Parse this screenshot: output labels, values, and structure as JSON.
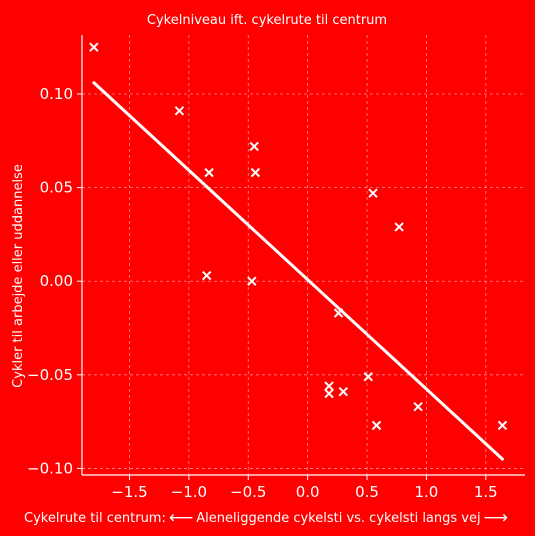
{
  "chart_data": {
    "type": "scatter",
    "title": "Cykelniveau ift. cykelrute til centrum",
    "ylabel": "Cykler til arbejde eller uddannelse",
    "xlabel": "",
    "xlim": [
      -1.9,
      1.83
    ],
    "ylim": [
      -0.1035,
      0.1315
    ],
    "xticks": [
      -1.5,
      -1.0,
      -0.5,
      0.0,
      0.5,
      1.0,
      1.5
    ],
    "xtick_labels": [
      "−1.5",
      "−1.0",
      "−0.5",
      "0.0",
      "0.5",
      "1.0",
      "1.5"
    ],
    "yticks": [
      -0.1,
      -0.05,
      0.0,
      0.05,
      0.1
    ],
    "ytick_labels": [
      "−0.10",
      "−0.05",
      "0.00",
      "0.05",
      "0.10"
    ],
    "grid": true,
    "points": [
      {
        "x": -1.8,
        "y": 0.125
      },
      {
        "x": -1.08,
        "y": 0.091
      },
      {
        "x": -0.83,
        "y": 0.058
      },
      {
        "x": -0.85,
        "y": 0.003
      },
      {
        "x": -0.45,
        "y": 0.072
      },
      {
        "x": -0.44,
        "y": 0.058
      },
      {
        "x": -0.47,
        "y": 0.0
      },
      {
        "x": 0.26,
        "y": -0.017
      },
      {
        "x": 0.18,
        "y": -0.056
      },
      {
        "x": 0.18,
        "y": -0.06
      },
      {
        "x": 0.3,
        "y": -0.059
      },
      {
        "x": 0.51,
        "y": -0.051
      },
      {
        "x": 0.55,
        "y": 0.047
      },
      {
        "x": 0.58,
        "y": -0.077
      },
      {
        "x": 0.77,
        "y": 0.029
      },
      {
        "x": 0.93,
        "y": -0.067
      },
      {
        "x": 1.64,
        "y": -0.077
      }
    ],
    "trendline": {
      "x": [
        -1.8,
        1.64
      ],
      "y": [
        0.106,
        -0.095
      ]
    },
    "colors": {
      "background": "#ff0000",
      "marks": "#ffffff",
      "grid": "#ffffff"
    }
  },
  "footer": {
    "left_label": "Cykelrute til centrum:",
    "right_label": "Aleneliggende cykelsti vs. cykelsti langs vej"
  }
}
